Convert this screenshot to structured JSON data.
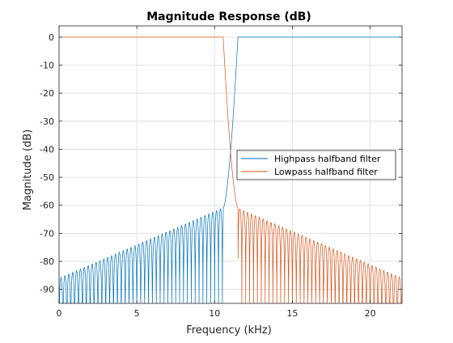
{
  "chart_data": {
    "type": "line",
    "title": "Magnitude Response (dB)",
    "xlabel": "Frequency (kHz)",
    "ylabel": "Magnitude (dB)",
    "xlim": [
      0,
      22.05
    ],
    "ylim": [
      -95,
      4
    ],
    "x_ticks": [
      0,
      5,
      10,
      15,
      20
    ],
    "y_ticks": [
      0,
      -10,
      -20,
      -30,
      -40,
      -50,
      -60,
      -70,
      -80,
      -90
    ],
    "grid": true,
    "legend_position": "center-right",
    "series": [
      {
        "name": "Highpass halfband filter",
        "color": "#0072bd",
        "passband_db": 0,
        "transition_khz": [
          10.55,
          11.5
        ],
        "stopband_envelope": {
          "x": [
            0,
            10.5
          ],
          "y": [
            -86,
            -61
          ]
        },
        "lobe_spacing_khz": 0.25,
        "stopband_floor_db": -95
      },
      {
        "name": "Lowpass halfband filter",
        "color": "#d95319",
        "passband_db": 0,
        "transition_khz": [
          10.55,
          11.5
        ],
        "stopband_envelope": {
          "x": [
            11.5,
            22.05
          ],
          "y": [
            -61,
            -86
          ]
        },
        "lobe_spacing_khz": 0.25,
        "stopband_floor_db": -95
      }
    ]
  }
}
